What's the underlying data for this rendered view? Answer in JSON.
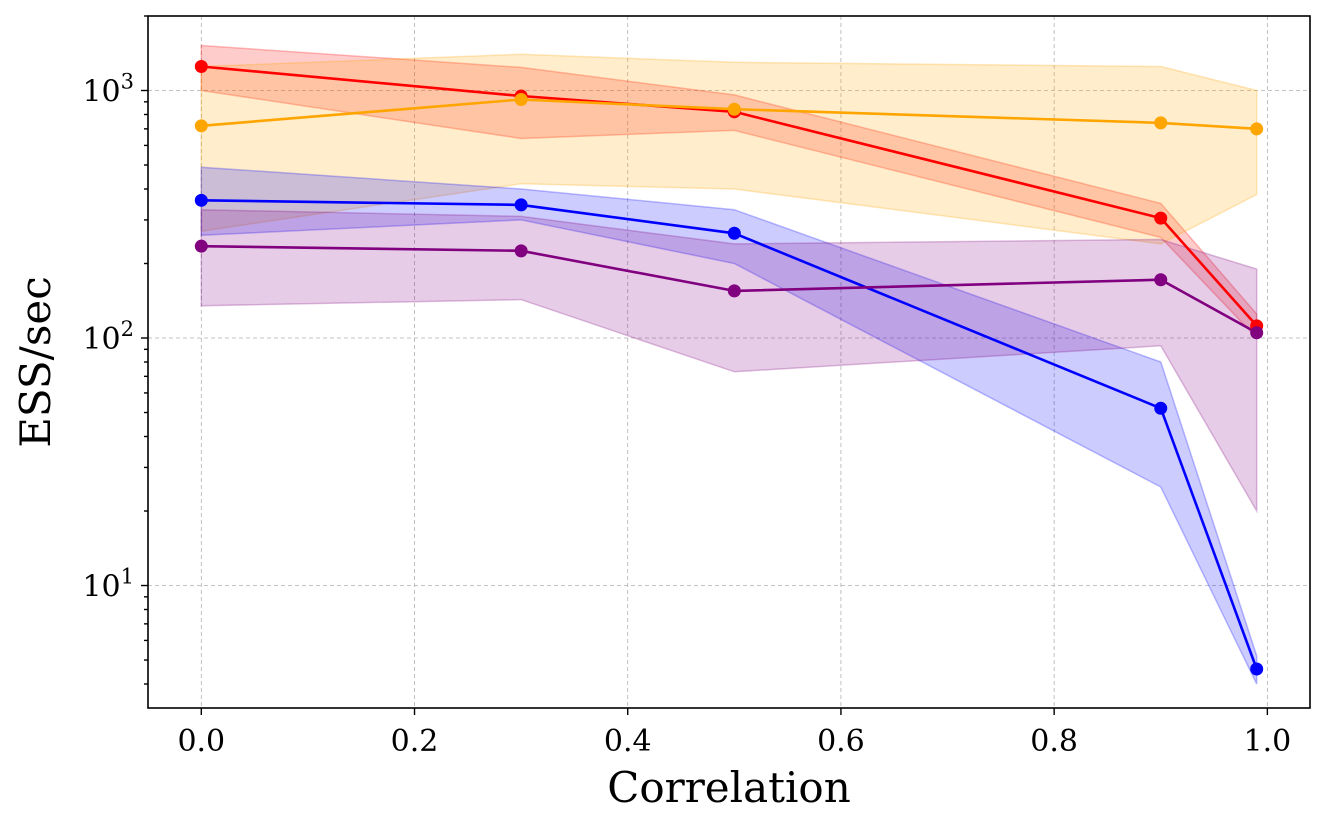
{
  "chart_data": {
    "type": "line",
    "xlabel": "Correlation",
    "ylabel": "ESS/sec",
    "xlim": [
      -0.05,
      1.04
    ],
    "ylim": [
      3.2,
      2000
    ],
    "yscale": "log",
    "grid": true,
    "x": [
      0.0,
      0.3,
      0.5,
      0.9,
      0.99
    ],
    "x_ticks": [
      0.0,
      0.2,
      0.4,
      0.6,
      0.8,
      1.0
    ],
    "x_tick_labels": [
      "0.0",
      "0.2",
      "0.4",
      "0.6",
      "0.8",
      "1.0"
    ],
    "y_ticks": [
      10,
      100,
      1000
    ],
    "y_tick_labels": [
      {
        "base": "10",
        "exp": "1"
      },
      {
        "base": "10",
        "exp": "2"
      },
      {
        "base": "10",
        "exp": "3"
      }
    ],
    "series": [
      {
        "color": "#ff0000",
        "values": [
          1250,
          950,
          820,
          305,
          112
        ],
        "lower": [
          1000,
          640,
          690,
          255,
          100
        ],
        "upper": [
          1520,
          1240,
          960,
          350,
          125
        ]
      },
      {
        "color": "#ffa500",
        "values": [
          720,
          920,
          840,
          740,
          700
        ],
        "lower": [
          270,
          420,
          400,
          240,
          380
        ],
        "upper": [
          1250,
          1400,
          1300,
          1250,
          1000
        ]
      },
      {
        "color": "#0000ff",
        "values": [
          360,
          345,
          265,
          52,
          4.6
        ],
        "lower": [
          260,
          300,
          200,
          25,
          4.0
        ],
        "upper": [
          490,
          400,
          330,
          80,
          5.2
        ]
      },
      {
        "color": "#800080",
        "values": [
          235,
          225,
          155,
          172,
          105
        ],
        "lower": [
          135,
          143,
          73,
          93,
          20
        ],
        "upper": [
          330,
          310,
          240,
          250,
          190
        ]
      }
    ]
  }
}
